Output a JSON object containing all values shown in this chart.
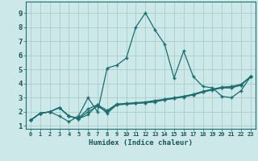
{
  "xlabel": "Humidex (Indice chaleur)",
  "bg_color": "#cce8e8",
  "grid_color": "#aacccc",
  "line_color": "#1a6e6e",
  "marker_color": "#1a6e6e",
  "xlim": [
    -0.5,
    23.5
  ],
  "ylim": [
    0.8,
    9.8
  ],
  "xticks": [
    0,
    1,
    2,
    3,
    4,
    5,
    6,
    7,
    8,
    9,
    10,
    11,
    12,
    13,
    14,
    15,
    16,
    17,
    18,
    19,
    20,
    21,
    22,
    23
  ],
  "yticks": [
    1,
    2,
    3,
    4,
    5,
    6,
    7,
    8,
    9
  ],
  "series": [
    [
      1.4,
      1.9,
      2.0,
      1.7,
      1.3,
      1.7,
      3.0,
      2.0,
      5.1,
      5.3,
      5.8,
      8.0,
      9.0,
      7.8,
      6.8,
      4.4,
      6.3,
      4.5,
      3.8,
      3.7,
      3.1,
      3.0,
      3.5,
      4.5
    ],
    [
      1.4,
      1.9,
      2.0,
      2.3,
      1.7,
      1.5,
      1.8,
      2.5,
      1.9,
      2.5,
      2.55,
      2.6,
      2.65,
      2.7,
      2.85,
      2.95,
      3.05,
      3.2,
      3.4,
      3.6,
      3.7,
      3.7,
      3.9,
      4.5
    ],
    [
      1.4,
      1.9,
      2.0,
      2.3,
      1.7,
      1.5,
      2.0,
      2.4,
      2.0,
      2.5,
      2.55,
      2.6,
      2.65,
      2.75,
      2.85,
      2.95,
      3.1,
      3.2,
      3.4,
      3.55,
      3.7,
      3.7,
      3.9,
      4.5
    ],
    [
      1.4,
      1.9,
      2.0,
      2.3,
      1.7,
      1.55,
      2.2,
      2.5,
      2.1,
      2.55,
      2.6,
      2.65,
      2.7,
      2.8,
      2.9,
      3.0,
      3.1,
      3.25,
      3.45,
      3.6,
      3.75,
      3.8,
      3.95,
      4.5
    ]
  ]
}
